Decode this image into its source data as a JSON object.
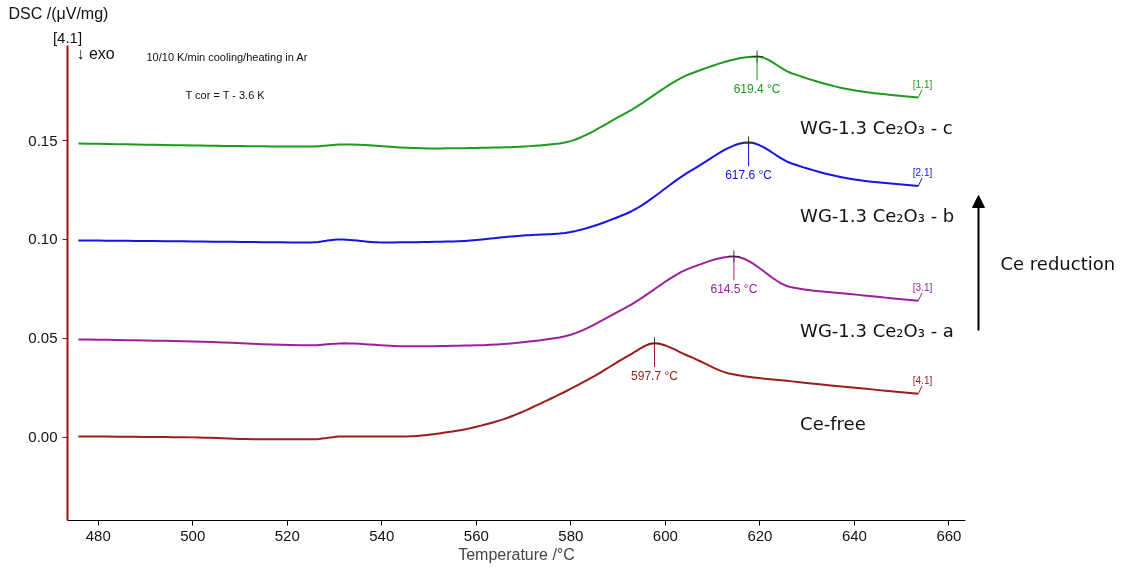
{
  "chart_data": {
    "type": "line",
    "xlabel": "Temperature /°C",
    "ylabel": "DSC /(μV/mg)",
    "xlim": [
      473.5,
      663.5
    ],
    "xticks": [
      480,
      500,
      520,
      540,
      560,
      580,
      600,
      620,
      640,
      660
    ],
    "ylim": [
      -0.042,
      0.198
    ],
    "yticks": [
      {
        "value": 0,
        "label": "0.00"
      },
      0.05,
      {
        "value": 0.1,
        "label": "0.10"
      },
      0.15
    ],
    "grid": false,
    "legend": "right",
    "marker": "none",
    "line_style": "solid",
    "series": [
      {
        "name": "WG-1.3 Ce₂O₃ - c",
        "color": "#1f9a1f",
        "x": [
          475.8,
          500,
          520,
          525,
          532,
          550,
          565,
          577.6,
          591.7,
          605.6,
          619.4,
          626.7,
          640.8,
          653.5
        ],
        "values": [
          0.1485,
          0.1475,
          0.147,
          0.147,
          0.148,
          0.146,
          0.1465,
          0.1485,
          0.164,
          0.184,
          0.1924,
          0.184,
          0.175,
          0.1717
        ]
      },
      {
        "name": "WG-1.3 Ce₂O₃ - b",
        "color": "#1414e6",
        "x": [
          475.8,
          500,
          525,
          531,
          540,
          555,
          570,
          577.6,
          591.7,
          605.6,
          617.6,
          626.7,
          640.8,
          653.5
        ],
        "values": [
          0.0995,
          0.099,
          0.0985,
          0.1,
          0.0985,
          0.099,
          0.102,
          0.103,
          0.113,
          0.135,
          0.149,
          0.1384,
          0.13,
          0.127
        ]
      },
      {
        "name": "WG-1.3 Ce₂O₃ - a",
        "color": "#9a219a",
        "x": [
          475.8,
          500,
          525,
          532,
          545,
          560,
          577.6,
          591.7,
          605.6,
          614.5,
          626.7,
          640.8,
          653.5
        ],
        "values": [
          0.0495,
          0.0485,
          0.0465,
          0.0475,
          0.046,
          0.0465,
          0.0505,
          0.0657,
          0.0859,
          0.0914,
          0.0758,
          0.072,
          0.069
        ]
      },
      {
        "name": "Ce-free",
        "color": "#9b1c1c",
        "x": [
          475.8,
          500,
          515,
          525,
          532,
          545,
          555,
          565,
          575,
          585,
          592,
          597.7,
          605,
          614,
          628,
          653.5
        ],
        "values": [
          0.0005,
          0.0,
          -0.001,
          -0.001,
          0.0005,
          0.0005,
          0.003,
          0.0086,
          0.0187,
          0.031,
          0.041,
          0.0475,
          0.041,
          0.032,
          0.028,
          0.022
        ]
      }
    ],
    "annotations": [
      "[4.1]",
      "↓ exo",
      "10/10 K/min cooling/heating in Ar",
      "T cor = T - 3.6 K",
      "Ce reduction",
      {
        "text": "619.4 °C",
        "x": 619.4,
        "y": 0.1924
      },
      {
        "text": "617.6 °C",
        "x": 617.6,
        "y": 0.149
      },
      {
        "text": "614.5 °C",
        "x": 614.5,
        "y": 0.0914
      },
      {
        "text": "597.7 °C",
        "x": 597.7,
        "y": 0.0475
      },
      {
        "text": "[1.1]",
        "x": 653.5,
        "y": 0.1717
      },
      {
        "text": "[2.1]",
        "x": 653.5,
        "y": 0.127
      },
      {
        "text": "[3.1]",
        "x": 653.5,
        "y": 0.069
      },
      {
        "text": "[4.1]",
        "x": 653.5,
        "y": 0.022
      }
    ]
  }
}
